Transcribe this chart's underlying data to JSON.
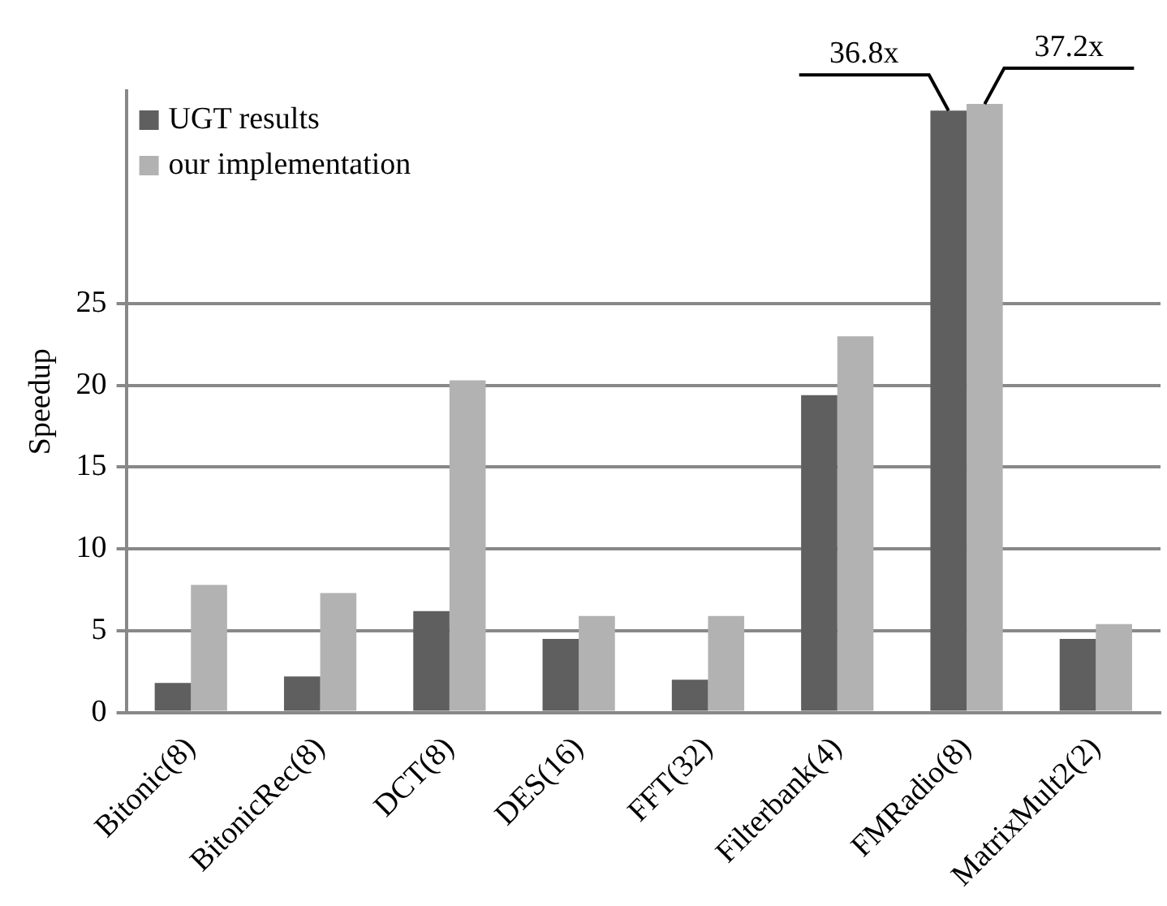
{
  "chart_data": {
    "type": "bar",
    "ylabel": "Speedup",
    "categories": [
      "Bitonic(8)",
      "BitonicRec(8)",
      "DCT(8)",
      "DES(16)",
      "FFT(32)",
      "Filterbank(4)",
      "FMRadio(8)",
      "MatrixMult2(2)"
    ],
    "series": [
      {
        "name": "UGT results",
        "color": "#5f5f5f",
        "values": [
          1.8,
          2.2,
          6.2,
          4.5,
          2.0,
          19.4,
          36.8,
          4.5
        ],
        "value_labels": [
          null,
          null,
          null,
          null,
          null,
          null,
          "36.8x",
          null
        ]
      },
      {
        "name": "our implementation",
        "color": "#b2b2b2",
        "values": [
          7.8,
          7.3,
          20.3,
          5.9,
          5.9,
          23.0,
          37.2,
          5.4
        ],
        "value_labels": [
          null,
          null,
          null,
          null,
          null,
          null,
          "37.2x",
          null
        ]
      }
    ],
    "ylim": [
      0,
      38
    ],
    "yticks": [
      0,
      5,
      10,
      15,
      20,
      25
    ],
    "grid": "y",
    "legend": "top left"
  }
}
